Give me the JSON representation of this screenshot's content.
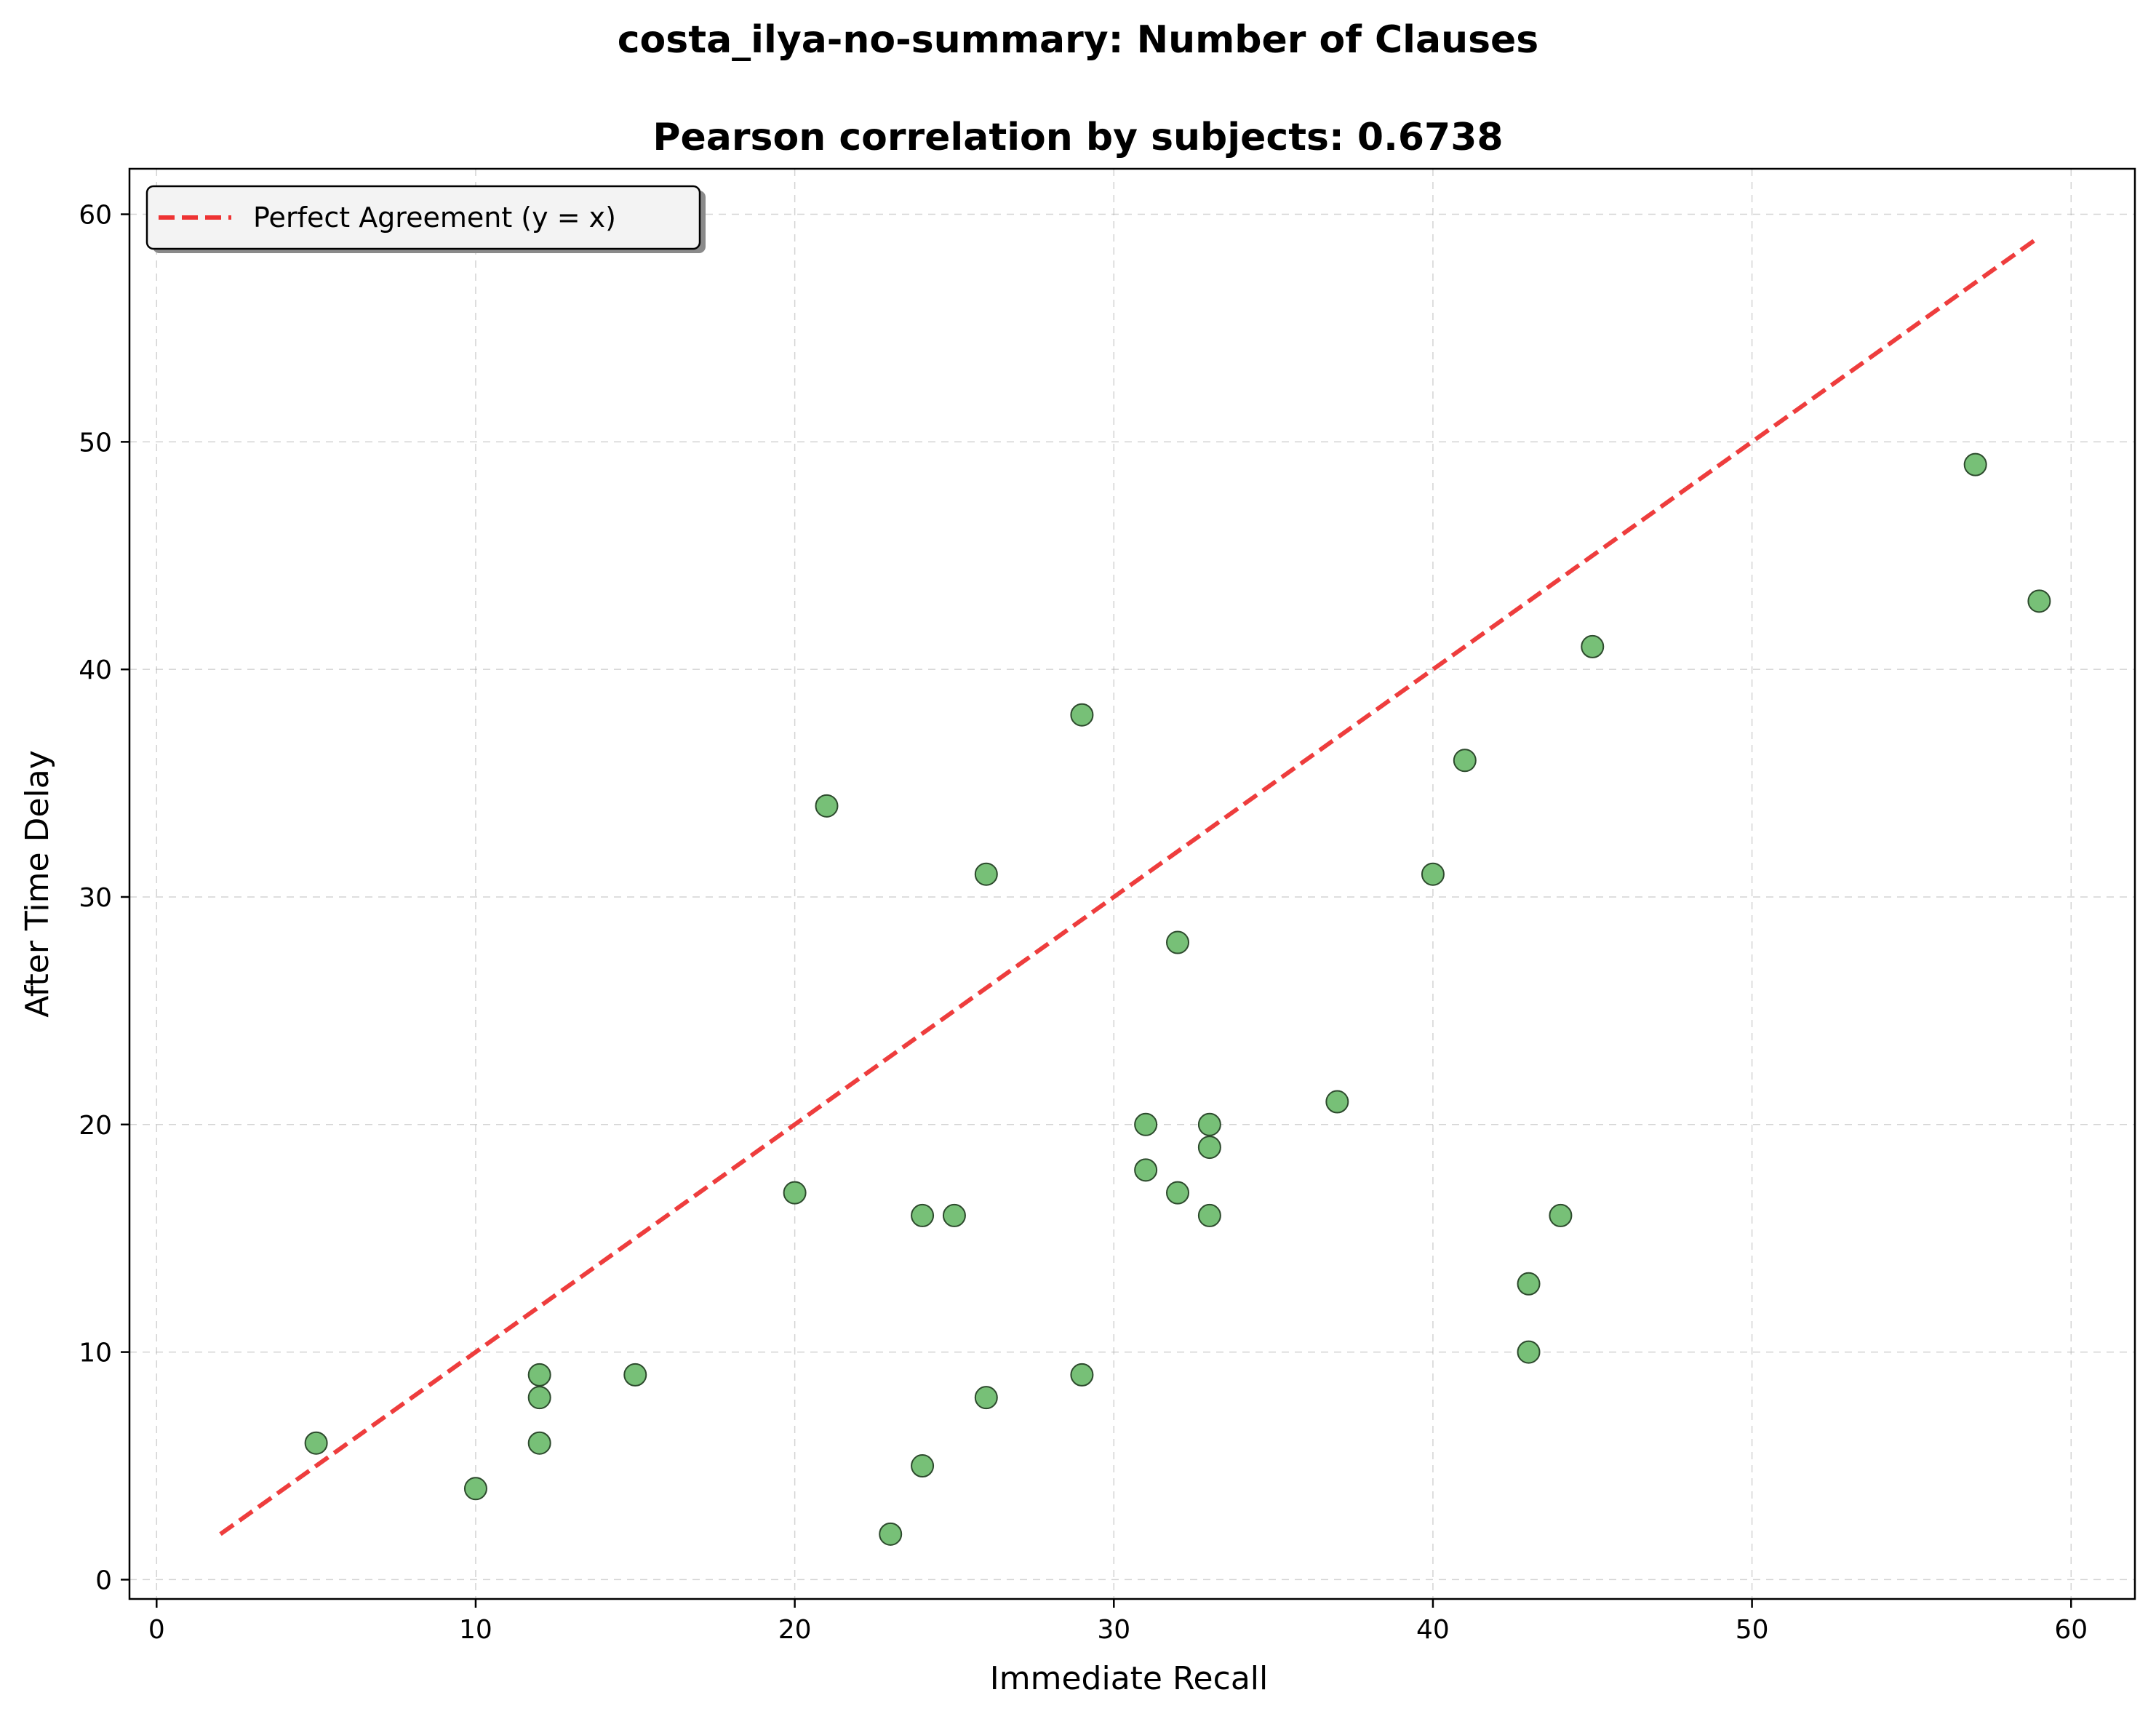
{
  "chart_data": {
    "type": "scatter",
    "title": "costa_ilya-no-summary: Number of Clauses",
    "subtitle": "Pearson correlation by subjects: 0.6738",
    "xlabel": "Immediate Recall",
    "ylabel": "After Time Delay",
    "xlim": [
      -0.85,
      62
    ],
    "ylim": [
      -0.85,
      62
    ],
    "xticks": [
      0,
      10,
      20,
      30,
      40,
      50,
      60
    ],
    "yticks": [
      0,
      10,
      20,
      30,
      40,
      50,
      60
    ],
    "grid": true,
    "legend_position": "top-left",
    "series": [
      {
        "name": "Perfect Agreement (y = x)",
        "kind": "line",
        "style": "dashed",
        "color": "#ee3333",
        "x": [
          2,
          59
        ],
        "y": [
          2,
          59
        ]
      },
      {
        "kind": "scatter",
        "color": "#77c077",
        "edge_color": "#2d4a2d",
        "points": [
          [
            5,
            6
          ],
          [
            10,
            4
          ],
          [
            12,
            9
          ],
          [
            12,
            8
          ],
          [
            12,
            6
          ],
          [
            15,
            9
          ],
          [
            20,
            17
          ],
          [
            21,
            34
          ],
          [
            23,
            2
          ],
          [
            24,
            16
          ],
          [
            24,
            5
          ],
          [
            25,
            16
          ],
          [
            26,
            31
          ],
          [
            26,
            8
          ],
          [
            29,
            38
          ],
          [
            29,
            9
          ],
          [
            31,
            20
          ],
          [
            31,
            18
          ],
          [
            32,
            28
          ],
          [
            32,
            17
          ],
          [
            33,
            20
          ],
          [
            33,
            19
          ],
          [
            33,
            16
          ],
          [
            37,
            21
          ],
          [
            40,
            31
          ],
          [
            41,
            36
          ],
          [
            43,
            13
          ],
          [
            43,
            10
          ],
          [
            44,
            16
          ],
          [
            45,
            41
          ],
          [
            57,
            49
          ],
          [
            59,
            43
          ]
        ]
      }
    ]
  }
}
